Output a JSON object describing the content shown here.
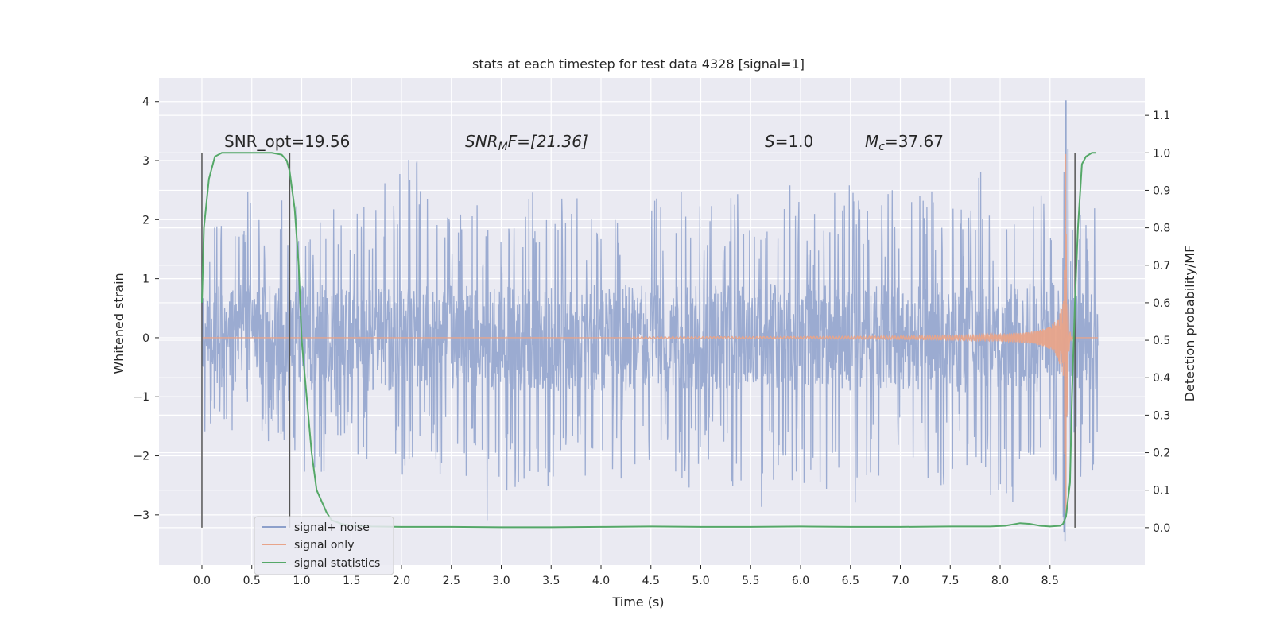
{
  "chart_data": {
    "type": "line",
    "title": "stats at each timestep for test data 4328 [signal=1]",
    "xlabel": "Time (s)",
    "ylabel_left": "Whitened strain",
    "ylabel_right": "Detection probability/MF",
    "xlim": [
      -0.43,
      9.45
    ],
    "ylim_left": [
      -3.85,
      4.4
    ],
    "ylim_right": [
      -0.1,
      1.2
    ],
    "x_ticks": [
      0.0,
      0.5,
      1.0,
      1.5,
      2.0,
      2.5,
      3.0,
      3.5,
      4.0,
      4.5,
      5.0,
      5.5,
      6.0,
      6.5,
      7.0,
      7.5,
      8.0,
      8.5
    ],
    "x_tick_labels": [
      "0.0",
      "0.5",
      "1.0",
      "1.5",
      "2.0",
      "2.5",
      "3.0",
      "3.5",
      "4.0",
      "4.5",
      "5.0",
      "5.5",
      "6.0",
      "6.5",
      "7.0",
      "7.5",
      "8.0",
      "8.5"
    ],
    "y_left_ticks": [
      -3,
      -2,
      -1,
      0,
      1,
      2,
      3,
      4
    ],
    "y_left_tick_labels": [
      "−3",
      "−2",
      "−1",
      "0",
      "1",
      "2",
      "3",
      "4"
    ],
    "y_right_ticks": [
      0.0,
      0.1,
      0.2,
      0.3,
      0.4,
      0.5,
      0.6,
      0.7,
      0.8,
      0.9,
      1.0,
      1.1
    ],
    "y_right_tick_labels": [
      "0.0",
      "0.1",
      "0.2",
      "0.3",
      "0.4",
      "0.5",
      "0.6",
      "0.7",
      "0.8",
      "0.9",
      "1.0",
      "1.1"
    ],
    "grid": true,
    "legend_position": "lower-left",
    "annotations": {
      "snr_opt": "SNR_opt=19.56",
      "snr_mf_main": "SNR",
      "snr_mf_sub": "M",
      "snr_mf_rest": "F=[21.36]",
      "s_var": "S",
      "s_rest": "=1.0",
      "mc_main": "M",
      "mc_sub": "c",
      "mc_rest": "=37.67"
    },
    "vlines_x": [
      0.0,
      0.88,
      8.75
    ],
    "noise_envelope": {
      "x_range": [
        0.0,
        8.98
      ],
      "typical_amplitude": 0.9,
      "upper_peaks": [
        [
          0.08,
          1.45
        ],
        [
          0.27,
          1.55
        ],
        [
          0.45,
          1.95
        ],
        [
          0.62,
          1.78
        ],
        [
          0.78,
          2.03
        ],
        [
          1.1,
          1.58
        ],
        [
          1.25,
          1.78
        ],
        [
          1.42,
          1.62
        ],
        [
          1.6,
          1.72
        ],
        [
          1.8,
          1.9
        ],
        [
          1.98,
          2.8
        ],
        [
          2.2,
          2.25
        ],
        [
          2.4,
          1.6
        ],
        [
          2.55,
          1.65
        ],
        [
          2.75,
          1.8
        ],
        [
          2.95,
          1.4
        ],
        [
          3.2,
          1.6
        ],
        [
          3.35,
          2.1
        ],
        [
          3.55,
          1.78
        ],
        [
          3.75,
          1.95
        ],
        [
          3.95,
          1.7
        ],
        [
          4.15,
          1.95
        ],
        [
          4.4,
          1.8
        ],
        [
          4.7,
          2.0
        ],
        [
          4.95,
          1.95
        ],
        [
          5.2,
          1.65
        ],
        [
          5.4,
          2.05
        ],
        [
          5.65,
          1.7
        ],
        [
          5.9,
          2.0
        ],
        [
          6.1,
          1.7
        ],
        [
          6.3,
          1.85
        ],
        [
          6.5,
          2.1
        ],
        [
          6.75,
          1.6
        ],
        [
          6.9,
          2.15
        ],
        [
          7.1,
          1.85
        ],
        [
          7.3,
          2.0
        ],
        [
          7.55,
          1.68
        ],
        [
          7.7,
          2.03
        ],
        [
          7.82,
          2.4
        ],
        [
          7.95,
          1.78
        ],
        [
          8.1,
          2.1
        ],
        [
          8.3,
          1.95
        ],
        [
          8.45,
          2.1
        ],
        [
          8.55,
          2.0
        ],
        [
          8.72,
          1.68
        ],
        [
          8.9,
          1.8
        ]
      ],
      "lower_troughs": [
        [
          0.1,
          -1.45
        ],
        [
          0.3,
          -1.33
        ],
        [
          0.5,
          -1.2
        ],
        [
          0.7,
          -1.38
        ],
        [
          0.9,
          -1.45
        ],
        [
          1.05,
          -1.85
        ],
        [
          1.15,
          -2.0
        ],
        [
          1.25,
          -1.7
        ],
        [
          1.45,
          -1.55
        ],
        [
          1.65,
          -1.7
        ],
        [
          1.85,
          -1.9
        ],
        [
          2.05,
          -1.85
        ],
        [
          2.25,
          -1.7
        ],
        [
          2.5,
          -1.9
        ],
        [
          2.7,
          -1.8
        ],
        [
          2.9,
          -2.65
        ],
        [
          3.1,
          -2.0
        ],
        [
          3.3,
          -1.85
        ],
        [
          3.55,
          -2.0
        ],
        [
          3.75,
          -1.75
        ],
        [
          4.0,
          -1.95
        ],
        [
          4.3,
          -1.8
        ],
        [
          4.55,
          -1.55
        ],
        [
          4.75,
          -2.15
        ],
        [
          5.0,
          -1.85
        ],
        [
          5.25,
          -1.95
        ],
        [
          5.6,
          -2.35
        ],
        [
          5.8,
          -1.95
        ],
        [
          6.05,
          -1.95
        ],
        [
          6.3,
          -2.05
        ],
        [
          6.55,
          -2.25
        ],
        [
          6.75,
          -2.0
        ],
        [
          7.0,
          -1.8
        ],
        [
          7.2,
          -1.75
        ],
        [
          7.45,
          -2.05
        ],
        [
          7.65,
          -1.8
        ],
        [
          7.85,
          -2.2
        ],
        [
          7.97,
          -2.38
        ],
        [
          8.12,
          -2.15
        ],
        [
          8.3,
          -2.05
        ],
        [
          8.45,
          -1.95
        ],
        [
          8.6,
          -2.1
        ],
        [
          8.85,
          -1.8
        ]
      ]
    },
    "chirp": {
      "start_x": 4.3,
      "merger_x": 8.66,
      "end_x": 8.98,
      "peak_amplitude": 3.2
    },
    "series": [
      {
        "name": "signal+ noise",
        "axis": "left",
        "color": "#8da0cb",
        "style": "dense noise trace",
        "spikes": [
          [
            8.66,
            4.02
          ],
          [
            8.65,
            -3.45
          ],
          [
            8.68,
            3.2
          ],
          [
            8.64,
            -3.3
          ]
        ]
      },
      {
        "name": "signal only",
        "axis": "left",
        "color": "#e8a48a",
        "style": "chirp waveform"
      },
      {
        "name": "signal statistics",
        "axis": "right",
        "color": "#55a868",
        "x": [
          0.0,
          0.02,
          0.07,
          0.13,
          0.2,
          0.3,
          0.5,
          0.7,
          0.8,
          0.85,
          0.88,
          0.93,
          0.97,
          1.0,
          1.05,
          1.1,
          1.15,
          1.2,
          1.25,
          1.3,
          1.4,
          1.5,
          1.7,
          2.0,
          2.5,
          3.0,
          3.5,
          4.0,
          4.5,
          5.0,
          5.5,
          6.0,
          6.5,
          7.0,
          7.5,
          7.9,
          8.05,
          8.2,
          8.3,
          8.4,
          8.5,
          8.6,
          8.63,
          8.66,
          8.7,
          8.72,
          8.75,
          8.78,
          8.82,
          8.86,
          8.92,
          8.96
        ],
        "values": [
          0.6,
          0.8,
          0.93,
          0.99,
          1.0,
          1.0,
          1.0,
          1.0,
          0.995,
          0.98,
          0.95,
          0.85,
          0.7,
          0.5,
          0.35,
          0.2,
          0.1,
          0.07,
          0.04,
          0.02,
          0.01,
          0.005,
          0.003,
          0.002,
          0.002,
          0.001,
          0.001,
          0.002,
          0.003,
          0.002,
          0.002,
          0.003,
          0.002,
          0.002,
          0.003,
          0.003,
          0.005,
          0.012,
          0.01,
          0.005,
          0.003,
          0.005,
          0.01,
          0.03,
          0.12,
          0.35,
          0.6,
          0.8,
          0.97,
          0.99,
          1.0,
          1.0
        ]
      }
    ]
  }
}
